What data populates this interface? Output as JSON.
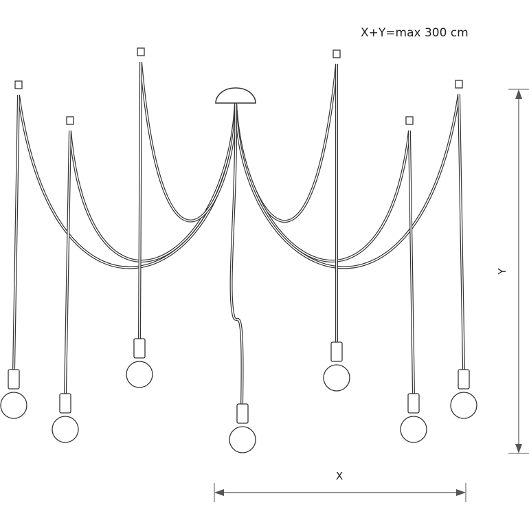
{
  "note": "X+Y=max 300 cm",
  "dimensions": {
    "x": "X",
    "y": "Y"
  }
}
